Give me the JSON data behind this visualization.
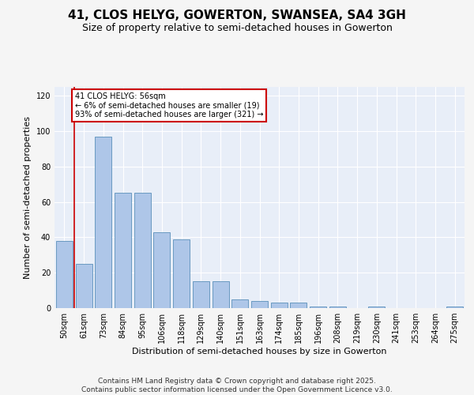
{
  "title1": "41, CLOS HELYG, GOWERTON, SWANSEA, SA4 3GH",
  "title2": "Size of property relative to semi-detached houses in Gowerton",
  "xlabel": "Distribution of semi-detached houses by size in Gowerton",
  "ylabel": "Number of semi-detached properties",
  "categories": [
    "50sqm",
    "61sqm",
    "73sqm",
    "84sqm",
    "95sqm",
    "106sqm",
    "118sqm",
    "129sqm",
    "140sqm",
    "151sqm",
    "163sqm",
    "174sqm",
    "185sqm",
    "196sqm",
    "208sqm",
    "219sqm",
    "230sqm",
    "241sqm",
    "253sqm",
    "264sqm",
    "275sqm"
  ],
  "values": [
    38,
    25,
    97,
    65,
    65,
    43,
    39,
    15,
    15,
    5,
    4,
    3,
    3,
    1,
    1,
    0,
    1,
    0,
    0,
    0,
    1
  ],
  "bar_color": "#aec6e8",
  "bar_edge_color": "#5a8fba",
  "annotation_text": "41 CLOS HELYG: 56sqm\n← 6% of semi-detached houses are smaller (19)\n93% of semi-detached houses are larger (321) →",
  "annotation_box_color": "#ffffff",
  "annotation_box_edge_color": "#cc0000",
  "vline_color": "#cc0000",
  "vline_x": 0.5,
  "ylim": [
    0,
    125
  ],
  "yticks": [
    0,
    20,
    40,
    60,
    80,
    100,
    120
  ],
  "footer1": "Contains HM Land Registry data © Crown copyright and database right 2025.",
  "footer2": "Contains public sector information licensed under the Open Government Licence v3.0.",
  "axes_bg_color": "#e8eef8",
  "fig_bg_color": "#f5f5f5",
  "grid_color": "#ffffff",
  "title_fontsize": 11,
  "subtitle_fontsize": 9,
  "axis_label_fontsize": 8,
  "tick_fontsize": 7,
  "annotation_fontsize": 7,
  "footer_fontsize": 6.5
}
